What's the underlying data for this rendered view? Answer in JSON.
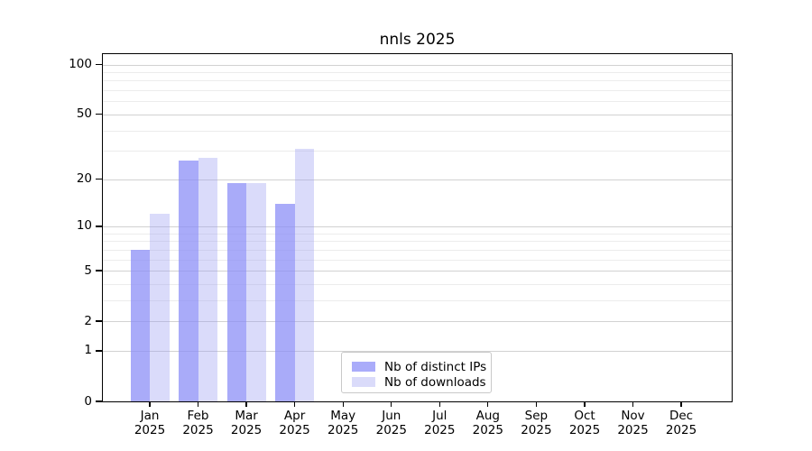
{
  "title": "nnls 2025",
  "chart_data": {
    "type": "bar",
    "title": "nnls 2025",
    "categories": [
      {
        "month": "Jan",
        "year": "2025"
      },
      {
        "month": "Feb",
        "year": "2025"
      },
      {
        "month": "Mar",
        "year": "2025"
      },
      {
        "month": "Apr",
        "year": "2025"
      },
      {
        "month": "May",
        "year": "2025"
      },
      {
        "month": "Jun",
        "year": "2025"
      },
      {
        "month": "Jul",
        "year": "2025"
      },
      {
        "month": "Aug",
        "year": "2025"
      },
      {
        "month": "Sep",
        "year": "2025"
      },
      {
        "month": "Oct",
        "year": "2025"
      },
      {
        "month": "Nov",
        "year": "2025"
      },
      {
        "month": "Dec",
        "year": "2025"
      }
    ],
    "series": [
      {
        "name": "Nb of distinct IPs",
        "color": "#aaacfa",
        "fill_color": "#888bf7",
        "fill_alpha": 0.72,
        "values": [
          7,
          26,
          19,
          14,
          0,
          0,
          0,
          0,
          0,
          0,
          0,
          0
        ]
      },
      {
        "name": "Nb of downloads",
        "color": "#dadbfa",
        "fill_color": "#989cf2",
        "fill_alpha": 0.36,
        "values": [
          12,
          27,
          19,
          31,
          0,
          0,
          0,
          0,
          0,
          0,
          0,
          0
        ]
      }
    ],
    "xlabel": "",
    "ylabel": "",
    "yscale": "log1p",
    "ylim": [
      0,
      115.4
    ],
    "y_major_ticks": [
      0,
      1,
      2,
      5,
      10,
      20,
      50,
      100
    ],
    "y_minor_gridlines": [
      3,
      4,
      6,
      7,
      8,
      9,
      30,
      40,
      60,
      70,
      80,
      90
    ],
    "grid": "on",
    "legend_position": "lower center"
  },
  "legend": {
    "items": [
      {
        "label": "Nb of distinct IPs",
        "swatch": "#aaacfa"
      },
      {
        "label": "Nb of downloads",
        "swatch": "#dadbfa"
      }
    ]
  }
}
